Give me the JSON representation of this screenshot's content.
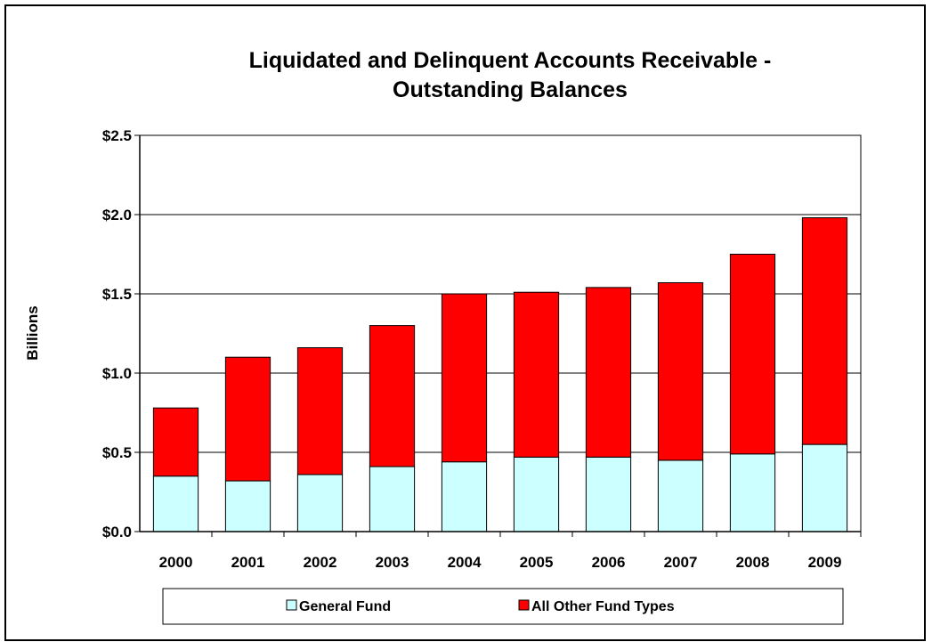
{
  "chart_data": {
    "type": "bar",
    "stacked": true,
    "title_line1": "Liquidated and Delinquent Accounts Receivable -",
    "title_line2": "Outstanding Balances",
    "xlabel": "",
    "ylabel": "Billions",
    "ylim": [
      0,
      2.5
    ],
    "yticks": [
      "$0.0",
      "$0.5",
      "$1.0",
      "$1.5",
      "$2.0",
      "$2.5"
    ],
    "grid": true,
    "legend_position": "bottom",
    "categories": [
      "2000",
      "2001",
      "2002",
      "2003",
      "2004",
      "2005",
      "2006",
      "2007",
      "2008",
      "2009"
    ],
    "series": [
      {
        "name": "General Fund",
        "color": "#CCFFFF",
        "values": [
          0.35,
          0.32,
          0.36,
          0.41,
          0.44,
          0.47,
          0.47,
          0.45,
          0.49,
          0.55
        ]
      },
      {
        "name": "All Other Fund Types",
        "color": "#FF0000",
        "values": [
          0.43,
          0.78,
          0.8,
          0.89,
          1.06,
          1.04,
          1.07,
          1.12,
          1.26,
          1.43
        ]
      }
    ]
  }
}
